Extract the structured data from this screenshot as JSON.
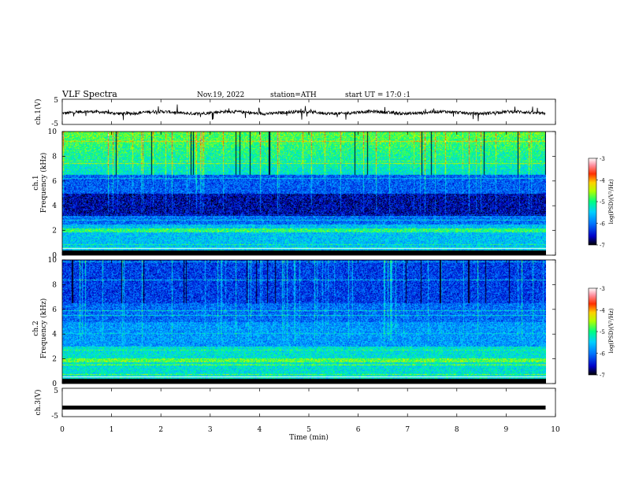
{
  "header": {
    "title": "VLF Spectra",
    "date": "Nov.19, 2022",
    "station": "station=ATH",
    "start_ut": "start UT = 17:0 :1"
  },
  "chart_data": [
    {
      "type": "line",
      "name": "ch1-waveform",
      "ylabel": "ch.1(V)",
      "ylim": [
        -5,
        5
      ],
      "yticks": [
        "5",
        "-5"
      ],
      "baseline_v": -0.3,
      "note_values": "noisy waveform around baseline with spikes"
    },
    {
      "type": "heatmap",
      "name": "ch1-spectrogram",
      "ylabel": "ch.1 Frequency (kHz)",
      "ylim": [
        0,
        10
      ],
      "yticks": [
        "0",
        "2",
        "4",
        "6",
        "8",
        "10"
      ],
      "colorbar": {
        "label": "log(PSD)(V²/Hz)",
        "ticks": [
          "-3",
          "-4",
          "-5",
          "-6",
          "-7"
        ],
        "range": [
          -7,
          -3
        ],
        "colors": [
          "#000000",
          "#0000c8",
          "#0078ff",
          "#00d0ff",
          "#00ff80",
          "#b0ff00",
          "#ffd000",
          "#ff3000",
          "#ff90a0",
          "#ffffff"
        ]
      }
    },
    {
      "type": "heatmap",
      "name": "ch2-spectrogram",
      "ylabel": "ch.2 Frequency (kHz)",
      "ylim": [
        0,
        10
      ],
      "yticks": [
        "0",
        "2",
        "4",
        "6",
        "8",
        "10"
      ],
      "colorbar": {
        "label": "log(PSD)(V²/Hz)",
        "ticks": [
          "-3",
          "-4",
          "-5",
          "-6",
          "-7"
        ],
        "range": [
          -7,
          -3
        ]
      }
    },
    {
      "type": "line",
      "name": "ch3-waveform",
      "ylabel": "ch.3(V)",
      "ylim": [
        -5,
        5
      ],
      "yticks": [
        "5",
        "-5"
      ],
      "baseline_v": -1.8
    }
  ],
  "xaxis": {
    "label": "Time (min)",
    "xlim": [
      0,
      10
    ],
    "data_end": 9.8,
    "ticks": [
      "0",
      "1",
      "2",
      "3",
      "4",
      "5",
      "6",
      "7",
      "8",
      "9",
      "10"
    ]
  }
}
